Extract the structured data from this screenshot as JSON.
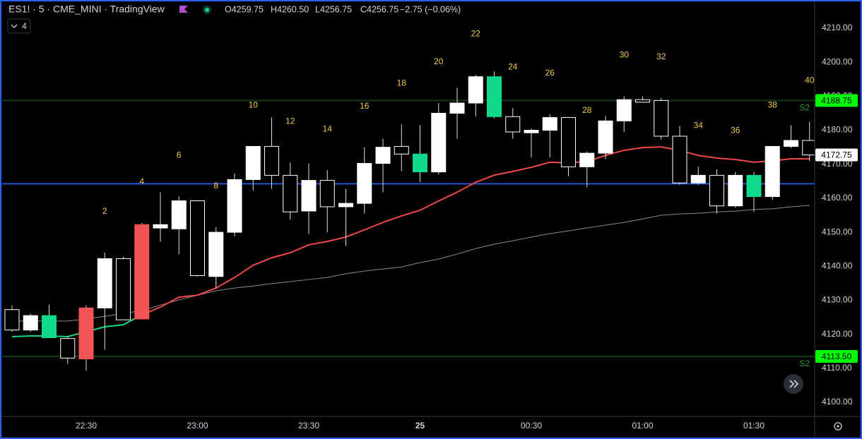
{
  "chart_data": {
    "type": "candlestick",
    "header": {
      "symbol": "ES1! · 5 · CME_MINI · TradingView",
      "ohlc": [
        "O4259.75",
        "H4260.50",
        "L4256.75",
        "C4256.75",
        "−2.75 (−0.06%)"
      ],
      "indicators": "4"
    },
    "categories": [
      null,
      null,
      null,
      null,
      "22:30",
      null,
      null,
      null,
      null,
      null,
      "23:00",
      null,
      null,
      null,
      null,
      null,
      "23:30",
      null,
      null,
      null,
      null,
      null,
      "25",
      null,
      null,
      null,
      null,
      null,
      "00:30",
      null,
      null,
      null,
      null,
      null,
      "01:00",
      null,
      null,
      null,
      null,
      null,
      "01:30",
      null,
      null,
      null
    ],
    "open": [
      4127.25,
      4121.25,
      4125.5,
      4118.75,
      4112.75,
      4127.75,
      4142.25,
      4124.5,
      4151.25,
      4151,
      4159.25,
      4137,
      4150,
      4165.5,
      4175.25,
      4166.75,
      4156.25,
      4165.25,
      4157.5,
      4158.5,
      4170.25,
      4175.25,
      4173,
      4167.75,
      4185,
      4188,
      4195.75,
      4184,
      4179.25,
      4180,
      4183.75,
      4169.25,
      4173.25,
      4182.75,
      4189,
      4188.75,
      4178.25,
      4164.5,
      4166.75,
      4157.75,
      4166.75,
      4160.5,
      4175.25,
      4177
    ],
    "high": [
      4128.5,
      4126,
      4128.75,
      4119.5,
      4128.5,
      4144,
      4142.75,
      4152.75,
      4161.75,
      4160.5,
      4159.25,
      4151.5,
      4167.25,
      4175.25,
      4183.75,
      4170.5,
      4170.25,
      4168.25,
      4162.75,
      4175,
      4177.5,
      4181.75,
      4181.5,
      4188,
      4192.5,
      4196.25,
      4197.25,
      4186.5,
      4180.5,
      4184.75,
      4183.75,
      4173.75,
      4184.25,
      4190,
      4190,
      4189.5,
      4181.25,
      4169.25,
      4168.5,
      4167.75,
      4167.75,
      4175.25,
      4181.5,
      4182.5
    ],
    "low": [
      4120.75,
      4120.75,
      4119,
      4111.25,
      4109.25,
      4115.5,
      4124.25,
      4124.5,
      4147.25,
      4143.5,
      4137,
      4133.5,
      4148.75,
      4162.25,
      4162.75,
      4153.75,
      4149.5,
      4150,
      4146,
      4155.5,
      4161.75,
      4168,
      4164.75,
      4167,
      4177.5,
      4184,
      4183.5,
      4177.5,
      4172,
      4172,
      4166.5,
      4163.25,
      4171.5,
      4179.5,
      4188.25,
      4177.25,
      4164,
      4164,
      4155.5,
      4157.25,
      4156,
      4159.5,
      4174.75,
      4171
    ],
    "close": [
      4121.25,
      4125.5,
      4119,
      4113,
      4127.75,
      4142.25,
      4124.25,
      4152.25,
      4152.25,
      4159.25,
      4137.25,
      4150,
      4165.5,
      4175.25,
      4166.75,
      4156,
      4165.25,
      4157.5,
      4158.5,
      4170.25,
      4175,
      4173,
      4167.75,
      4185,
      4188,
      4195.75,
      4184,
      4179.5,
      4180,
      4183.75,
      4169.25,
      4173.25,
      4182.75,
      4189,
      4188.25,
      4178.25,
      4164.5,
      4166.75,
      4157.75,
      4166.75,
      4160.5,
      4175.25,
      4177,
      4172.75
    ],
    "colors": [
      "#000000",
      "#ffffff",
      "#0fd98a",
      "#000000",
      "#f25555",
      "#ffffff",
      "#000000",
      "#f25555",
      "#ffffff",
      "#ffffff",
      "#000000",
      "#ffffff",
      "#ffffff",
      "#ffffff",
      "#000000",
      "#000000",
      "#ffffff",
      "#000000",
      "#ffffff",
      "#ffffff",
      "#ffffff",
      "#000000",
      "#0fd98a",
      "#ffffff",
      "#ffffff",
      "#ffffff",
      "#0fd98a",
      "#000000",
      "#ffffff",
      "#ffffff",
      "#000000",
      "#ffffff",
      "#ffffff",
      "#ffffff",
      "#000000",
      "#000000",
      "#000000",
      "#ffffff",
      "#000000",
      "#ffffff",
      "#0fd98a",
      "#ffffff",
      "#ffffff",
      "#000000"
    ],
    "count_labels": [
      null,
      null,
      null,
      null,
      null,
      "2",
      null,
      "4",
      null,
      "6",
      null,
      "8",
      null,
      "10",
      null,
      "12",
      null,
      "14",
      null,
      "16",
      null,
      "18",
      null,
      "20",
      null,
      "22",
      null,
      "24",
      null,
      "26",
      null,
      "28",
      null,
      "30",
      null,
      "32",
      null,
      "34",
      null,
      "36",
      null,
      "38",
      null,
      "40"
    ],
    "count_color": "#f0c84a",
    "lines": [
      {
        "color": "#8a8a8a",
        "values": [
          4123.9,
          4123.9,
          4123.9,
          4123.9,
          4124.5,
          4125.3,
          4126.1,
          4127.0,
          4128.6,
          4130.1,
          4131.5,
          4132.8,
          4133.6,
          4134.2,
          4134.9,
          4135.5,
          4136.1,
          4136.7,
          4137.8,
          4138.6,
          4139.2,
          4139.8,
          4141.1,
          4142.1,
          4143.6,
          4145.2,
          4146.5,
          4147.5,
          4148.6,
          4149.6,
          4150.4,
          4151.3,
          4152.1,
          4152.9,
          4153.9,
          4155.0,
          4155.4,
          4155.6,
          4156.0,
          4156.2,
          4156.7,
          4156.9,
          4157.5,
          4157.9
        ]
      },
      {
        "color": "#16d67e",
        "values": [
          4119.3,
          4119.5,
          4119.5,
          4119.3,
          4120.75,
          4122.2,
          4122.8,
          4125.7,
          null,
          null,
          null,
          null,
          null,
          null,
          null,
          null,
          null,
          null,
          null,
          null,
          null,
          null,
          null,
          null,
          null,
          null,
          null,
          null,
          null,
          null,
          null,
          null,
          null,
          null,
          null,
          null,
          null,
          null,
          null,
          null,
          null,
          null,
          null,
          null
        ]
      },
      {
        "color": "#f04848",
        "values": [
          null,
          null,
          null,
          null,
          null,
          null,
          null,
          4125.7,
          4128.0,
          4130.9,
          4131.5,
          4133.6,
          4136.7,
          4140.3,
          4142.5,
          4144.0,
          4146.3,
          4147.3,
          4148.6,
          4150.7,
          4152.9,
          4154.8,
          4156.5,
          4159.2,
          4161.8,
          4164.7,
          4166.8,
          4167.9,
          4169.1,
          4170.6,
          4170.4,
          4170.8,
          4172.6,
          4174.1,
          4174.9,
          4175.1,
          4174.1,
          4172.6,
          4171.8,
          4171.4,
          4170.6,
          4171.0,
          4171.6,
          4171.6
        ]
      }
    ],
    "hlines": [
      {
        "value": 4164.25,
        "color": "#2962ff"
      },
      {
        "value": 4188.75,
        "color": "#0b3d14",
        "label": "S2"
      },
      {
        "value": 4113.5,
        "color": "#0b3d14",
        "label": "S2"
      }
    ],
    "price_labels": [
      {
        "value": 4188.75,
        "label": "4188.75",
        "color": "#00ff00"
      },
      {
        "value": 4172.75,
        "label": "4172.75",
        "color": "#ffffff"
      },
      {
        "value": 4113.5,
        "label": "4113.50",
        "color": "#00ff00"
      }
    ],
    "ylim": [
      4095.85,
      4218.3
    ],
    "yticks": [
      {
        "value": 4100,
        "label": "4100.00"
      },
      {
        "value": 4110,
        "label": "4110.00"
      },
      {
        "value": 4120,
        "label": "4120.00"
      },
      {
        "value": 4130,
        "label": "4130.00"
      },
      {
        "value": 4140,
        "label": "4140.00"
      },
      {
        "value": 4150,
        "label": "4150.00"
      },
      {
        "value": 4160,
        "label": "4160.00"
      },
      {
        "value": 4170,
        "label": "4170.00"
      },
      {
        "value": 4180,
        "label": "4180.00"
      },
      {
        "value": 4190,
        "label": "4190.00"
      },
      {
        "value": 4200,
        "label": "4200.00"
      },
      {
        "value": 4210,
        "label": "4210.00"
      }
    ]
  }
}
